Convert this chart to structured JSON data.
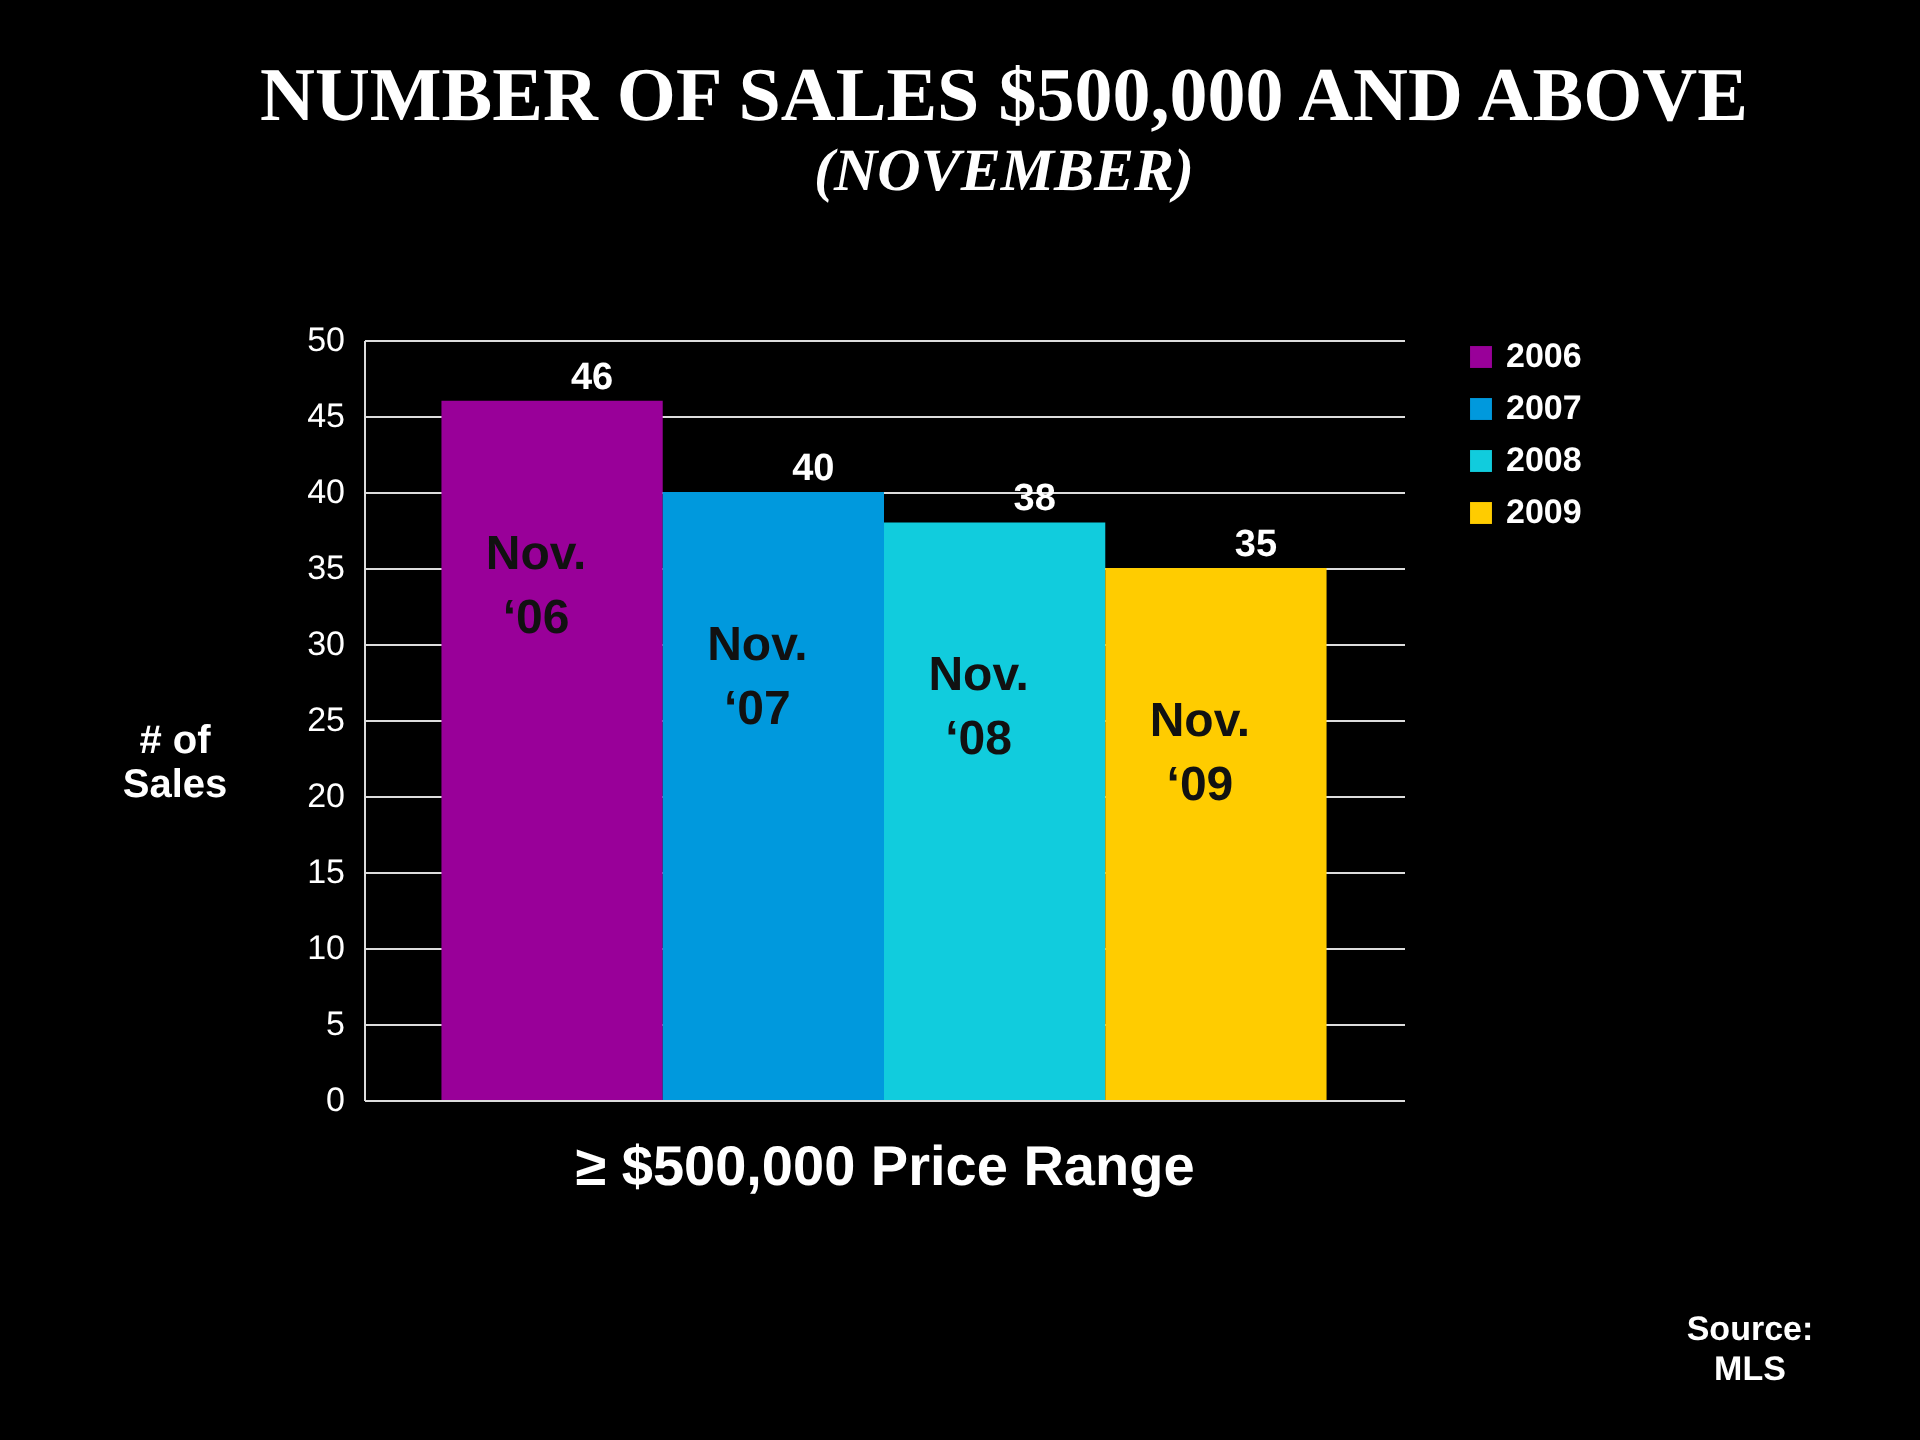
{
  "chart_data": {
    "type": "bar",
    "title": "NUMBER OF SALES  $500,000 AND ABOVE",
    "subtitle": "(NOVEMBER)",
    "xlabel": "≥ $500,000 Price Range",
    "ylabel": "# of Sales",
    "categories": [
      "Nov. ‘06",
      "Nov. ‘07",
      "Nov. ‘08",
      "Nov. ‘09"
    ],
    "series": [
      {
        "name": "2006",
        "color": "#990099",
        "values": [
          46,
          null,
          null,
          null
        ]
      },
      {
        "name": "2007",
        "color": "#0099dd",
        "values": [
          null,
          40,
          null,
          null
        ]
      },
      {
        "name": "2008",
        "color": "#11ccdd",
        "values": [
          null,
          null,
          38,
          null
        ]
      },
      {
        "name": "2009",
        "color": "#ffcc00",
        "values": [
          null,
          null,
          null,
          35
        ]
      }
    ],
    "ylim": [
      0,
      50
    ],
    "yticks": [
      0,
      5,
      10,
      15,
      20,
      25,
      30,
      35,
      40,
      45,
      50
    ],
    "grid": "y",
    "legend": "right",
    "data_labels": true,
    "annotations": [
      "Source: MLS"
    ]
  }
}
